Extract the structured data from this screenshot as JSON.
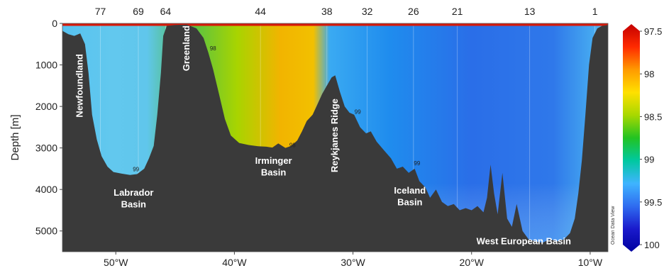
{
  "chart_data": {
    "type": "heatmap",
    "ylabel": "Depth [m]",
    "xlim": [
      -54.5,
      -8.5
    ],
    "ylim": [
      5500,
      0
    ],
    "x_ticks": [
      {
        "value": -50,
        "label": "50°W"
      },
      {
        "value": -40,
        "label": "40°W"
      },
      {
        "value": -30,
        "label": "30°W"
      },
      {
        "value": -20,
        "label": "20°W"
      },
      {
        "value": -10,
        "label": "10°W"
      }
    ],
    "y_ticks": [
      {
        "value": 0,
        "label": "0"
      },
      {
        "value": 1000,
        "label": "1000"
      },
      {
        "value": 2000,
        "label": "2000"
      },
      {
        "value": 3000,
        "label": "3000"
      },
      {
        "value": 4000,
        "label": "4000"
      },
      {
        "value": 5000,
        "label": "5000"
      }
    ],
    "stations": [
      {
        "label": "77",
        "lon": -51.3
      },
      {
        "label": "69",
        "lon": -48.1
      },
      {
        "label": "64",
        "lon": -45.8
      },
      {
        "label": "44",
        "lon": -37.8
      },
      {
        "label": "38",
        "lon": -32.2
      },
      {
        "label": "32",
        "lon": -28.8
      },
      {
        "label": "26",
        "lon": -24.9
      },
      {
        "label": "21",
        "lon": -21.2
      },
      {
        "label": "13",
        "lon": -15.1
      },
      {
        "label": "1",
        "lon": -9.6
      }
    ],
    "colorbar": {
      "ticks": [
        "97.5",
        "98",
        "98.5",
        "99",
        "99.5",
        "100"
      ],
      "range": [
        97.5,
        100
      ],
      "colors": [
        "#c40000",
        "#ff2a00",
        "#ff9a00",
        "#ffe000",
        "#a8d800",
        "#22c322",
        "#00c8a0",
        "#3fb4ff",
        "#2f6cf0",
        "#1a1acc",
        "#0000a0"
      ]
    },
    "regions": [
      {
        "name": "Newfoundland",
        "lon": -52.8,
        "depth": 1500,
        "rotate": -90
      },
      {
        "name": "Greenland",
        "lon": -43.8,
        "depth": 600,
        "rotate": -90
      },
      {
        "name": "Labrador",
        "lon": -48.5,
        "depth": 4150,
        "rotate": 0
      },
      {
        "name": "Basin",
        "lon": -48.5,
        "depth": 4430,
        "rotate": 0
      },
      {
        "name": "Irminger",
        "lon": -36.7,
        "depth": 3380,
        "rotate": 0
      },
      {
        "name": "Basin",
        "lon": -36.7,
        "depth": 3660,
        "rotate": 0
      },
      {
        "name": "Reykjanes Ridge",
        "lon": -31.3,
        "depth": 2700,
        "rotate": -90
      },
      {
        "name": "Iceland",
        "lon": -25.2,
        "depth": 4100,
        "rotate": 0
      },
      {
        "name": "Basin",
        "lon": -25.2,
        "depth": 4380,
        "rotate": 0
      },
      {
        "name": "West European Basin",
        "lon": -15.6,
        "depth": 5320,
        "rotate": 0
      }
    ],
    "contour_labels": [
      {
        "text": "98",
        "lon": -41.8,
        "depth": 650
      },
      {
        "text": "99",
        "lon": -29.6,
        "depth": 2180
      },
      {
        "text": "98",
        "lon": -35.1,
        "depth": 2980
      },
      {
        "text": "99",
        "lon": -48.3,
        "depth": 3560
      },
      {
        "text": "99",
        "lon": -24.6,
        "depth": 3420
      }
    ],
    "bathymetry": [
      [
        -54.5,
        180
      ],
      [
        -54,
        260
      ],
      [
        -53.5,
        300
      ],
      [
        -53,
        240
      ],
      [
        -52.6,
        500
      ],
      [
        -52.3,
        1200
      ],
      [
        -52,
        2200
      ],
      [
        -51.6,
        2800
      ],
      [
        -51.2,
        3200
      ],
      [
        -50.7,
        3450
      ],
      [
        -50.2,
        3580
      ],
      [
        -49.5,
        3620
      ],
      [
        -48.8,
        3650
      ],
      [
        -48.2,
        3630
      ],
      [
        -47.6,
        3500
      ],
      [
        -47.2,
        3250
      ],
      [
        -46.8,
        2950
      ],
      [
        -46.5,
        2200
      ],
      [
        -46.2,
        1200
      ],
      [
        -46,
        300
      ],
      [
        -45.7,
        60
      ],
      [
        -45,
        40
      ],
      [
        -44,
        30
      ],
      [
        -43.2,
        120
      ],
      [
        -42.6,
        350
      ],
      [
        -42.2,
        700
      ],
      [
        -41.8,
        1100
      ],
      [
        -41.3,
        1700
      ],
      [
        -40.8,
        2300
      ],
      [
        -40.3,
        2700
      ],
      [
        -39.6,
        2880
      ],
      [
        -38.8,
        2930
      ],
      [
        -38,
        2960
      ],
      [
        -37.3,
        2970
      ],
      [
        -36.8,
        2990
      ],
      [
        -36.3,
        2890
      ],
      [
        -35.7,
        3000
      ],
      [
        -35.2,
        2950
      ],
      [
        -34.7,
        2820
      ],
      [
        -34.3,
        2600
      ],
      [
        -33.9,
        2350
      ],
      [
        -33.4,
        2200
      ],
      [
        -33,
        1950
      ],
      [
        -32.6,
        1700
      ],
      [
        -32.2,
        1500
      ],
      [
        -31.8,
        1300
      ],
      [
        -31.5,
        1250
      ],
      [
        -31.1,
        1650
      ],
      [
        -30.7,
        2000
      ],
      [
        -30.3,
        2150
      ],
      [
        -29.9,
        2200
      ],
      [
        -29.4,
        2500
      ],
      [
        -28.9,
        2650
      ],
      [
        -28.5,
        2600
      ],
      [
        -28,
        2850
      ],
      [
        -27.4,
        3050
      ],
      [
        -26.8,
        3250
      ],
      [
        -26.3,
        3500
      ],
      [
        -25.8,
        3450
      ],
      [
        -25.3,
        3600
      ],
      [
        -24.8,
        3500
      ],
      [
        -24.4,
        3800
      ],
      [
        -23.9,
        3950
      ],
      [
        -23.5,
        4200
      ],
      [
        -23,
        4000
      ],
      [
        -22.5,
        4300
      ],
      [
        -22,
        4400
      ],
      [
        -21.5,
        4350
      ],
      [
        -21,
        4500
      ],
      [
        -20.5,
        4450
      ],
      [
        -20,
        4500
      ],
      [
        -19.5,
        4400
      ],
      [
        -19,
        4550
      ],
      [
        -18.7,
        4200
      ],
      [
        -18.4,
        3400
      ],
      [
        -18.1,
        4100
      ],
      [
        -17.8,
        4600
      ],
      [
        -17.4,
        3600
      ],
      [
        -17,
        4700
      ],
      [
        -16.6,
        4900
      ],
      [
        -16.2,
        4350
      ],
      [
        -15.7,
        5000
      ],
      [
        -15.2,
        5200
      ],
      [
        -14.6,
        5250
      ],
      [
        -14,
        5280
      ],
      [
        -13.4,
        5200
      ],
      [
        -12.8,
        5250
      ],
      [
        -12.2,
        5200
      ],
      [
        -11.7,
        5050
      ],
      [
        -11.3,
        4700
      ],
      [
        -11,
        4100
      ],
      [
        -10.7,
        3300
      ],
      [
        -10.4,
        2200
      ],
      [
        -10.1,
        1000
      ],
      [
        -9.8,
        350
      ],
      [
        -9.4,
        120
      ],
      [
        -9,
        60
      ],
      [
        -8.5,
        40
      ]
    ]
  }
}
